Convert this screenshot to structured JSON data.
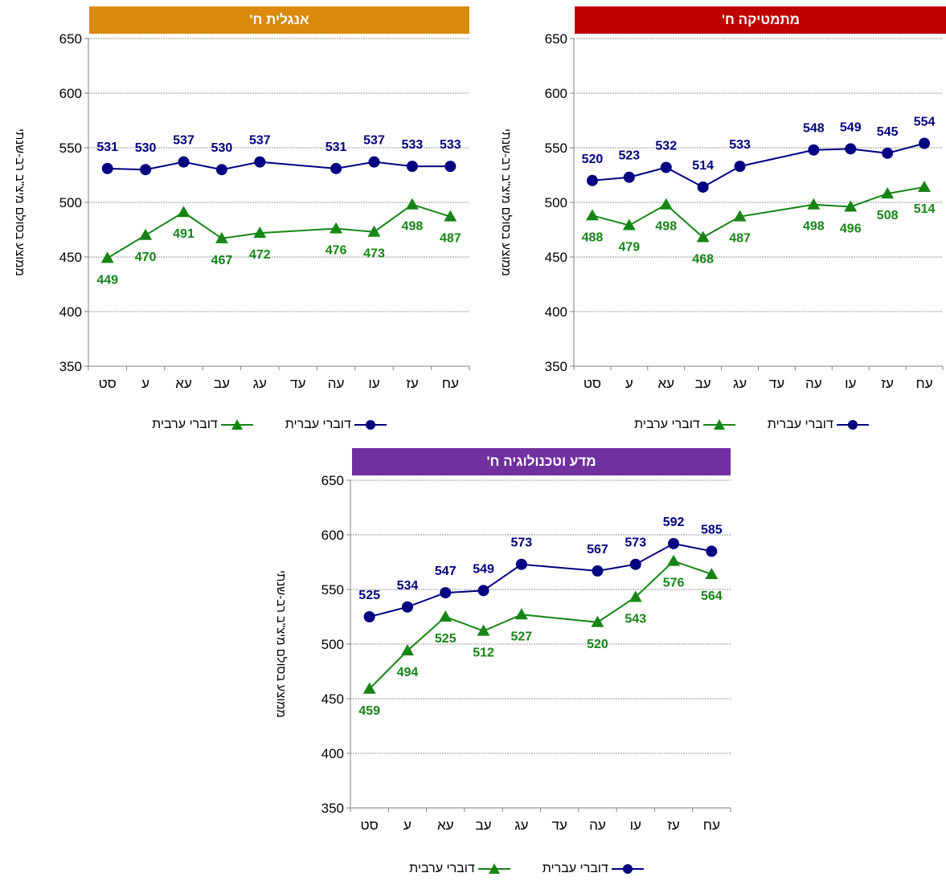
{
  "chart_data": [
    {
      "type": "line",
      "title": "אנגלית ח'",
      "title_color": "#D98A0A",
      "ylabel": "ממוצע בסולם מיצ\"ב רב-שנתי",
      "ylim": [
        350,
        650
      ],
      "yticks": [
        350,
        400,
        450,
        500,
        550,
        600,
        650
      ],
      "categories": [
        "סט",
        "ע",
        "עא",
        "עב",
        "עג",
        "עד",
        "עה",
        "עו",
        "עז",
        "עח"
      ],
      "grid": true,
      "series": [
        {
          "name": "דוברי עברית",
          "color": "#000080",
          "marker": "circle",
          "values": [
            531,
            530,
            537,
            530,
            537,
            null,
            531,
            537,
            533,
            533
          ]
        },
        {
          "name": "דוברי ערבית",
          "color": "#168516",
          "marker": "triangle",
          "values": [
            449,
            470,
            491,
            467,
            472,
            null,
            476,
            473,
            498,
            487
          ]
        }
      ]
    },
    {
      "type": "line",
      "title": "מתמטיקה ח'",
      "title_color": "#C00000",
      "ylabel": "ממוצע בסולם מיצ\"ב רב-שנתי",
      "ylim": [
        350,
        650
      ],
      "yticks": [
        350,
        400,
        450,
        500,
        550,
        600,
        650
      ],
      "categories": [
        "סט",
        "ע",
        "עא",
        "עב",
        "עג",
        "עד",
        "עה",
        "עו",
        "עז",
        "עח"
      ],
      "grid": true,
      "series": [
        {
          "name": "דוברי עברית",
          "color": "#000080",
          "marker": "circle",
          "values": [
            520,
            523,
            532,
            514,
            533,
            null,
            548,
            549,
            545,
            554
          ]
        },
        {
          "name": "דוברי ערבית",
          "color": "#168516",
          "marker": "triangle",
          "values": [
            488,
            479,
            498,
            468,
            487,
            null,
            498,
            496,
            508,
            514
          ]
        }
      ]
    },
    {
      "type": "line",
      "title": "מדע וטכנולוגיה ח'",
      "title_color": "#7030A0",
      "ylabel": "ממוצע בסולם מיצ\"ב רב-שנתי",
      "ylim": [
        350,
        650
      ],
      "yticks": [
        350,
        400,
        450,
        500,
        550,
        600,
        650
      ],
      "categories": [
        "סט",
        "ע",
        "עא",
        "עב",
        "עג",
        "עד",
        "עה",
        "עו",
        "עז",
        "עח"
      ],
      "grid": true,
      "series": [
        {
          "name": "דוברי עברית",
          "color": "#000080",
          "marker": "circle",
          "values": [
            525,
            534,
            547,
            549,
            573,
            null,
            567,
            573,
            592,
            585
          ]
        },
        {
          "name": "דוברי ערבית",
          "color": "#168516",
          "marker": "triangle",
          "values": [
            459,
            494,
            525,
            512,
            527,
            null,
            520,
            543,
            576,
            564
          ]
        }
      ]
    }
  ]
}
